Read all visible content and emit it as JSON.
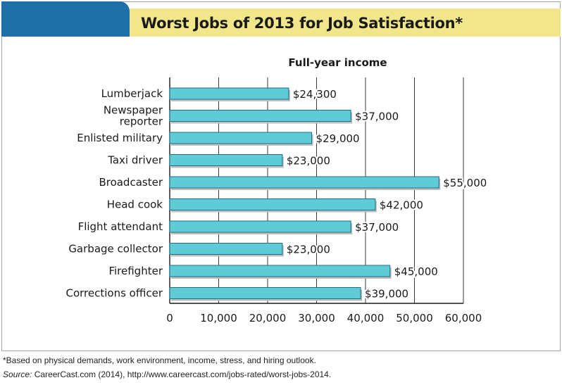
{
  "header": {
    "title": "Worst Jobs of 2013 for Job Satisfaction*",
    "colors": {
      "left_band": "#1f6fa8",
      "title_band": "#f1e78a"
    }
  },
  "chart_data": {
    "type": "bar",
    "orientation": "horizontal",
    "title": "Full-year income",
    "categories": [
      "Lumberjack",
      "Newspaper reporter",
      "Enlisted military",
      "Taxi driver",
      "Broadcaster",
      "Head cook",
      "Flight attendant",
      "Garbage collector",
      "Firefighter",
      "Corrections officer"
    ],
    "values": [
      24300,
      37000,
      29000,
      23000,
      55000,
      42000,
      37000,
      23000,
      45000,
      39000
    ],
    "value_labels": [
      "$24,300",
      "$37,000",
      "$29,000",
      "$23,000",
      "$55,000",
      "$42,000",
      "$37,000",
      "$23,000",
      "$45,000",
      "$39,000"
    ],
    "xlim": [
      0,
      60000
    ],
    "xticks": [
      0,
      10000,
      20000,
      30000,
      40000,
      50000,
      60000
    ],
    "xtick_labels": [
      "0",
      "10,000",
      "20,000",
      "30,000",
      "40,000",
      "50,000",
      "60,000"
    ],
    "grid": true,
    "legend": "none",
    "bar_color": "#5ecbd6",
    "bar_edge_color": "#1d6f86"
  },
  "footnote": "*Based on physical demands, work environment, income, stress, and hiring outlook.",
  "source": {
    "label": "Source:",
    "text": " CareerCast.com (2014), http://www.careercast.com/jobs-rated/worst-jobs-2014."
  }
}
